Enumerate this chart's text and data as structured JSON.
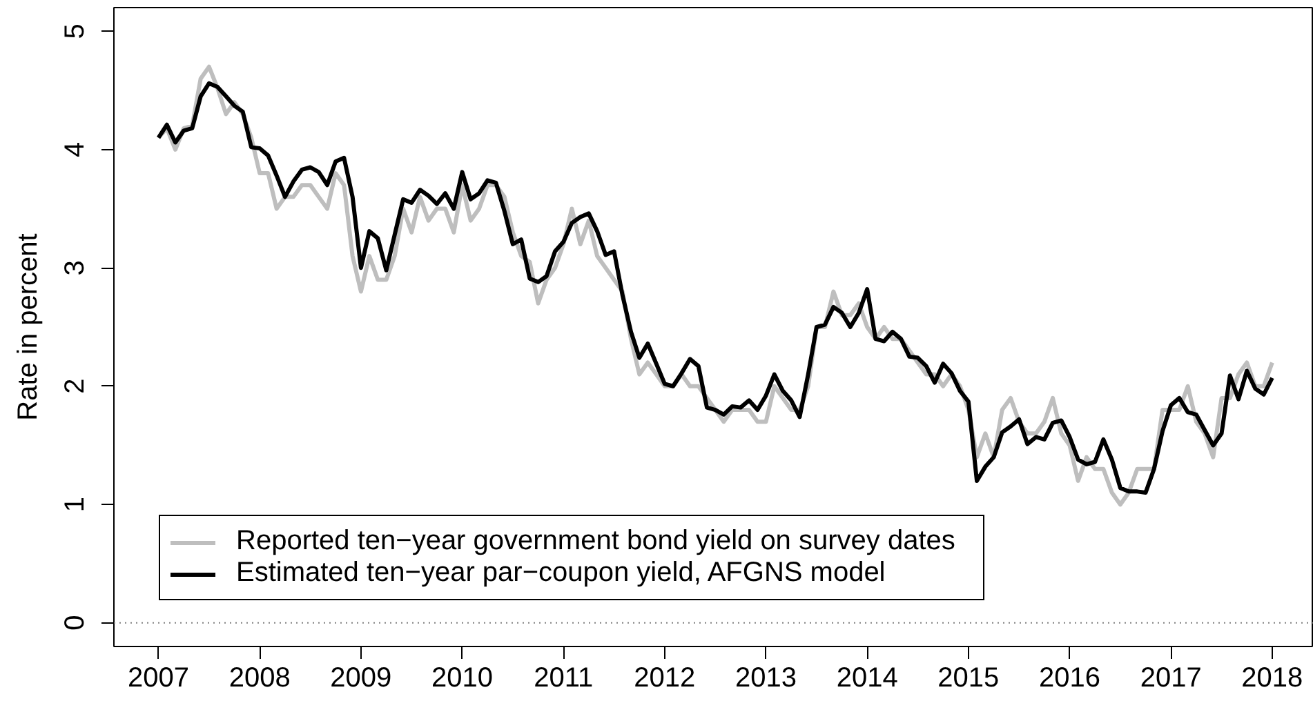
{
  "chart_data": {
    "type": "line",
    "ylabel": "Rate in percent",
    "xlim": [
      2006.56,
      2018.41
    ],
    "ylim": [
      -0.2,
      5.2
    ],
    "xticks": [
      2007,
      2008,
      2009,
      2010,
      2011,
      2012,
      2013,
      2014,
      2015,
      2016,
      2017,
      2018
    ],
    "yticks": [
      0,
      1,
      2,
      3,
      4,
      5
    ],
    "legend": "bottom left",
    "ref_lines": [
      {
        "axis": "y",
        "value": 0,
        "color": "#808080",
        "line_style": "dotted"
      }
    ],
    "x": [
      2007,
      2007.083,
      2007.167,
      2007.25,
      2007.333,
      2007.417,
      2007.5,
      2007.583,
      2007.667,
      2007.75,
      2007.833,
      2007.917,
      2008,
      2008.083,
      2008.167,
      2008.25,
      2008.333,
      2008.417,
      2008.5,
      2008.583,
      2008.667,
      2008.75,
      2008.833,
      2008.917,
      2009,
      2009.083,
      2009.167,
      2009.25,
      2009.333,
      2009.417,
      2009.5,
      2009.583,
      2009.667,
      2009.75,
      2009.833,
      2009.917,
      2010,
      2010.083,
      2010.167,
      2010.25,
      2010.333,
      2010.417,
      2010.5,
      2010.583,
      2010.667,
      2010.75,
      2010.833,
      2010.917,
      2011,
      2011.083,
      2011.167,
      2011.25,
      2011.333,
      2011.417,
      2011.5,
      2011.583,
      2011.667,
      2011.75,
      2011.833,
      2011.917,
      2012,
      2012.083,
      2012.167,
      2012.25,
      2012.333,
      2012.417,
      2012.5,
      2012.583,
      2012.667,
      2012.75,
      2012.833,
      2012.917,
      2013,
      2013.083,
      2013.167,
      2013.25,
      2013.333,
      2013.417,
      2013.5,
      2013.583,
      2013.667,
      2013.75,
      2013.833,
      2013.917,
      2014,
      2014.083,
      2014.167,
      2014.25,
      2014.333,
      2014.417,
      2014.5,
      2014.583,
      2014.667,
      2014.75,
      2014.833,
      2014.917,
      2015,
      2015.083,
      2015.167,
      2015.25,
      2015.333,
      2015.417,
      2015.5,
      2015.583,
      2015.667,
      2015.75,
      2015.833,
      2015.917,
      2016,
      2016.083,
      2016.167,
      2016.25,
      2016.333,
      2016.417,
      2016.5,
      2016.583,
      2016.667,
      2016.75,
      2016.833,
      2016.917,
      2017,
      2017.083,
      2017.167,
      2017.25,
      2017.333,
      2017.417,
      2017.5,
      2017.583,
      2017.667,
      2017.75,
      2017.833,
      2017.917,
      2018
    ],
    "series": [
      {
        "name": "Reported ten−year government bond yield on survey dates",
        "color": "#bebebe",
        "values": [
          4.1,
          4.18,
          4.0,
          4.18,
          4.2,
          4.6,
          4.7,
          4.52,
          4.3,
          4.4,
          4.3,
          4.1,
          3.8,
          3.8,
          3.5,
          3.6,
          3.6,
          3.7,
          3.7,
          3.6,
          3.5,
          3.8,
          3.7,
          3.1,
          2.8,
          3.1,
          2.9,
          2.9,
          3.1,
          3.5,
          3.3,
          3.6,
          3.4,
          3.5,
          3.5,
          3.3,
          3.7,
          3.4,
          3.5,
          3.7,
          3.7,
          3.6,
          3.3,
          3.1,
          3.05,
          2.7,
          2.9,
          3.0,
          3.2,
          3.5,
          3.2,
          3.4,
          3.1,
          3.0,
          2.9,
          2.8,
          2.4,
          2.1,
          2.2,
          2.1,
          2.0,
          2.0,
          2.1,
          2.0,
          2.0,
          1.9,
          1.8,
          1.7,
          1.8,
          1.8,
          1.8,
          1.7,
          1.7,
          2.0,
          1.9,
          1.8,
          1.8,
          2.0,
          2.5,
          2.5,
          2.8,
          2.6,
          2.6,
          2.7,
          2.5,
          2.4,
          2.5,
          2.4,
          2.4,
          2.3,
          2.2,
          2.1,
          2.1,
          2.0,
          2.1,
          2.0,
          1.8,
          1.4,
          1.6,
          1.4,
          1.8,
          1.9,
          1.7,
          1.6,
          1.6,
          1.7,
          1.9,
          1.6,
          1.5,
          1.2,
          1.4,
          1.3,
          1.3,
          1.1,
          1.0,
          1.1,
          1.3,
          1.3,
          1.3,
          1.8,
          1.8,
          1.8,
          2.0,
          1.7,
          1.6,
          1.4,
          1.9,
          1.9,
          2.1,
          2.2,
          2.0,
          2.0,
          2.2
        ]
      },
      {
        "name": "Estimated ten−year par−coupon yield, AFGNS model",
        "color": "#000000",
        "values": [
          4.1,
          4.21,
          4.06,
          4.16,
          4.18,
          4.45,
          4.56,
          4.53,
          4.45,
          4.37,
          4.32,
          4.02,
          4.01,
          3.95,
          3.78,
          3.6,
          3.73,
          3.83,
          3.85,
          3.81,
          3.7,
          3.9,
          3.93,
          3.6,
          3.0,
          3.31,
          3.25,
          2.98,
          3.28,
          3.58,
          3.55,
          3.66,
          3.61,
          3.54,
          3.63,
          3.5,
          3.81,
          3.58,
          3.63,
          3.74,
          3.72,
          3.48,
          3.2,
          3.24,
          2.91,
          2.88,
          2.93,
          3.14,
          3.22,
          3.38,
          3.43,
          3.46,
          3.31,
          3.11,
          3.14,
          2.77,
          2.46,
          2.24,
          2.36,
          2.19,
          2.02,
          2.0,
          2.11,
          2.23,
          2.17,
          1.82,
          1.8,
          1.76,
          1.83,
          1.82,
          1.88,
          1.8,
          1.92,
          2.1,
          1.96,
          1.88,
          1.74,
          2.1,
          2.5,
          2.52,
          2.67,
          2.62,
          2.5,
          2.62,
          2.82,
          2.4,
          2.38,
          2.46,
          2.4,
          2.25,
          2.24,
          2.17,
          2.03,
          2.19,
          2.11,
          1.96,
          1.87,
          1.2,
          1.32,
          1.4,
          1.61,
          1.66,
          1.72,
          1.51,
          1.57,
          1.55,
          1.69,
          1.71,
          1.57,
          1.38,
          1.34,
          1.36,
          1.55,
          1.38,
          1.14,
          1.11,
          1.11,
          1.1,
          1.3,
          1.62,
          1.84,
          1.9,
          1.78,
          1.76,
          1.63,
          1.5,
          1.6,
          2.09,
          1.89,
          2.13,
          1.98,
          1.93,
          2.07
        ]
      }
    ]
  }
}
